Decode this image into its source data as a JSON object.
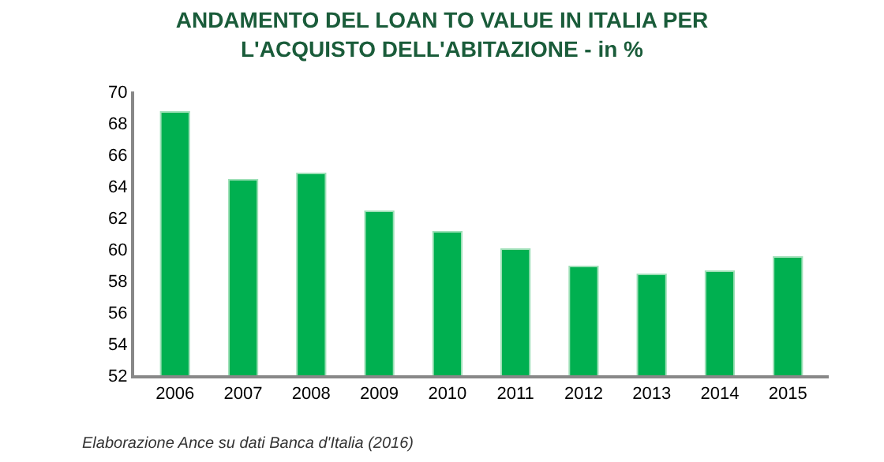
{
  "chart_data": {
    "type": "bar",
    "title": "ANDAMENTO DEL LOAN TO VALUE IN ITALIA PER\nL'ACQUISTO DELL'ABITAZIONE - in %",
    "categories": [
      "2006",
      "2007",
      "2008",
      "2009",
      "2010",
      "2011",
      "2012",
      "2013",
      "2014",
      "2015"
    ],
    "values": [
      68.7,
      64.4,
      64.8,
      62.4,
      61.1,
      60.0,
      58.9,
      58.4,
      58.6,
      59.5
    ],
    "color": "#00b050",
    "ylim": [
      52,
      70
    ],
    "yticks": [
      52,
      54,
      56,
      58,
      60,
      62,
      64,
      66,
      68,
      70
    ],
    "grid": false,
    "annotations": [
      "Elaborazione Ance su dati Banca d'Italia (2016)"
    ]
  }
}
